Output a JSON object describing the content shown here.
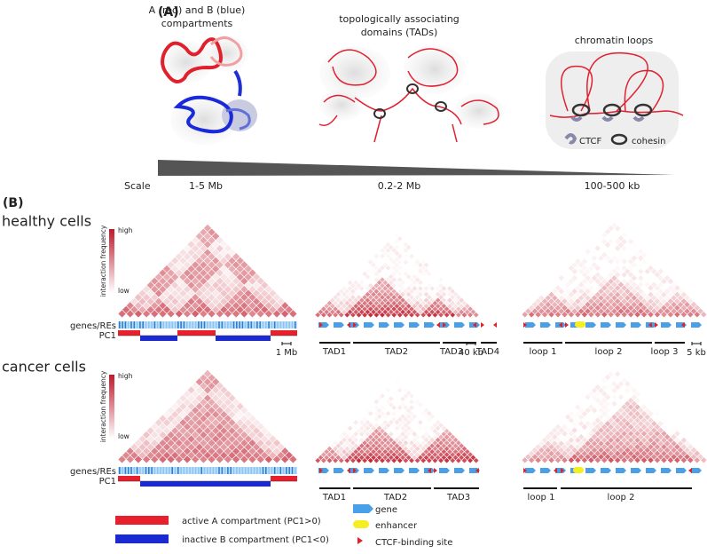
{
  "panel_a": {
    "label": "(A)",
    "columns": [
      {
        "title": [
          "A (red) and B (blue)",
          "compartments"
        ],
        "scale": "1-5 Mb"
      },
      {
        "title": [
          "topologically associating",
          "domains (TADs)"
        ],
        "scale": "0.2-2 Mb"
      },
      {
        "title": [
          "chromatin loops"
        ],
        "scale": "100-500 kb"
      }
    ],
    "scale_label": "Scale",
    "legend": {
      "ctcf": "CTCF",
      "cohesin": "cohesin"
    }
  },
  "panel_b": {
    "label": "(B)",
    "rows": [
      {
        "title": "healthy cells",
        "colorbar": {
          "high": "high",
          "low": "low",
          "title": "interaction frequency"
        },
        "tracks": [
          "genes/REs",
          "PC1"
        ],
        "tads": [
          "TAD1",
          "TAD2",
          "TAD3",
          "TAD4"
        ],
        "loops": [
          "loop 1",
          "loop 2",
          "loop 3"
        ],
        "scale_bars": [
          "1 Mb",
          "40 kb",
          "5 kb"
        ]
      },
      {
        "title": "cancer cells",
        "colorbar": {
          "high": "high",
          "low": "low",
          "title": "interaction frequency"
        },
        "tracks": [
          "genes/REs",
          "PC1"
        ],
        "tads": [
          "TAD1",
          "TAD2",
          "TAD3"
        ],
        "loops": [
          "loop 1",
          "loop 2"
        ]
      }
    ],
    "legend": {
      "active": "active A compartment (PC1>0)",
      "inactive": "inactive B compartment (PC1<0)",
      "gene": "gene",
      "enhancer": "enhancer",
      "ctcf_site": "CTCF-binding site"
    }
  }
}
